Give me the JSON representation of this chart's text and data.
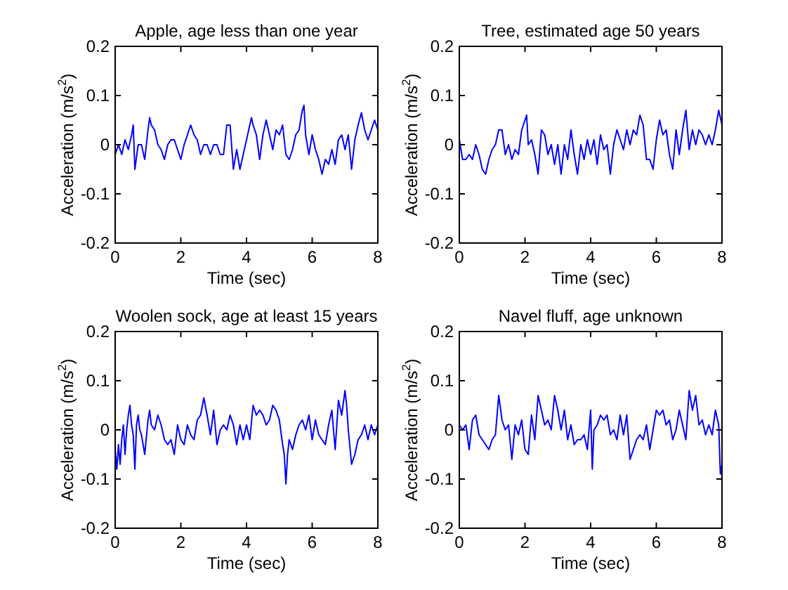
{
  "chart_data": [
    {
      "type": "line",
      "title": "Apple, age less than one year",
      "xlabel": "Time (sec)",
      "ylabel": "Acceleration (m/s$^{2}$)",
      "xlim": [
        0,
        8
      ],
      "ylim": [
        -0.2,
        0.2
      ],
      "xticks": [
        0,
        2,
        4,
        6,
        8
      ],
      "yticks": [
        -0.2,
        -0.1,
        0,
        0.1,
        0.2
      ],
      "x": [
        0,
        0.1,
        0.2,
        0.3,
        0.4,
        0.5,
        0.55,
        0.6,
        0.7,
        0.8,
        0.9,
        1,
        1.05,
        1.1,
        1.2,
        1.3,
        1.4,
        1.5,
        1.6,
        1.7,
        1.8,
        1.9,
        2,
        2.1,
        2.2,
        2.3,
        2.4,
        2.5,
        2.6,
        2.7,
        2.8,
        2.9,
        3,
        3.1,
        3.2,
        3.3,
        3.4,
        3.5,
        3.6,
        3.7,
        3.8,
        3.9,
        4,
        4.1,
        4.15,
        4.2,
        4.3,
        4.4,
        4.5,
        4.6,
        4.7,
        4.8,
        4.9,
        5,
        5.1,
        5.2,
        5.3,
        5.4,
        5.5,
        5.6,
        5.7,
        5.75,
        5.8,
        5.9,
        6,
        6.1,
        6.2,
        6.3,
        6.4,
        6.5,
        6.6,
        6.7,
        6.8,
        6.9,
        7,
        7.1,
        7.2,
        7.3,
        7.4,
        7.5,
        7.6,
        7.7,
        7.8,
        7.9,
        8
      ],
      "series": [
        {
          "color": "#0000ff",
          "values": [
            -0.02,
            0,
            -0.02,
            0.01,
            -0.01,
            0.02,
            0.04,
            -0.05,
            0,
            0,
            -0.03,
            0.03,
            0.055,
            0.04,
            0.03,
            0,
            -0.01,
            -0.03,
            0,
            0.01,
            0.01,
            -0.01,
            -0.03,
            0,
            0.02,
            0.04,
            0.02,
            0.01,
            -0.02,
            0,
            0,
            -0.02,
            0,
            0,
            -0.02,
            -0.02,
            0.04,
            0.04,
            -0.05,
            -0.01,
            -0.05,
            -0.02,
            0.01,
            0.04,
            0.055,
            0.04,
            0.02,
            -0.03,
            0.02,
            0.05,
            0.02,
            -0.01,
            0.03,
            0.02,
            0.04,
            -0.02,
            -0.03,
            -0.01,
            0.02,
            0.03,
            0.07,
            0.08,
            0.02,
            -0.02,
            0.02,
            -0.01,
            -0.03,
            -0.06,
            -0.03,
            -0.04,
            -0.01,
            -0.04,
            0.01,
            0.02,
            -0.01,
            0.02,
            -0.05,
            0.01,
            0.04,
            0.065,
            0.03,
            0.01,
            0.03,
            0.05,
            0.03
          ]
        }
      ]
    },
    {
      "type": "line",
      "title": "Tree, estimated age 50 years",
      "xlabel": "Time (sec)",
      "ylabel": "Acceleration (m/s$^{2}$)",
      "xlim": [
        0,
        8
      ],
      "ylim": [
        -0.2,
        0.2
      ],
      "xticks": [
        0,
        2,
        4,
        6,
        8
      ],
      "yticks": [
        -0.2,
        -0.1,
        0,
        0.1,
        0.2
      ],
      "x": [
        0,
        0.1,
        0.2,
        0.3,
        0.4,
        0.5,
        0.6,
        0.7,
        0.8,
        0.9,
        1,
        1.1,
        1.2,
        1.3,
        1.4,
        1.5,
        1.6,
        1.7,
        1.8,
        1.9,
        2,
        2.05,
        2.1,
        2.2,
        2.3,
        2.4,
        2.5,
        2.6,
        2.7,
        2.8,
        2.9,
        3,
        3.1,
        3.2,
        3.3,
        3.4,
        3.5,
        3.6,
        3.7,
        3.8,
        3.9,
        4,
        4.1,
        4.2,
        4.3,
        4.4,
        4.5,
        4.6,
        4.7,
        4.8,
        4.9,
        5,
        5.1,
        5.2,
        5.3,
        5.4,
        5.5,
        5.6,
        5.7,
        5.8,
        5.9,
        6,
        6.1,
        6.2,
        6.3,
        6.4,
        6.5,
        6.6,
        6.7,
        6.8,
        6.9,
        7,
        7.1,
        7.2,
        7.3,
        7.4,
        7.5,
        7.6,
        7.7,
        7.8,
        7.9,
        8
      ],
      "series": [
        {
          "color": "#0000ff",
          "values": [
            0.01,
            -0.03,
            -0.03,
            -0.02,
            -0.03,
            0,
            -0.02,
            -0.05,
            -0.06,
            -0.03,
            -0.01,
            0,
            0.03,
            0.03,
            -0.02,
            0,
            -0.03,
            -0.01,
            -0.02,
            0.03,
            0.05,
            0.06,
            0,
            0.01,
            -0.02,
            -0.06,
            0.03,
            0.02,
            -0.02,
            0,
            -0.04,
            0,
            -0.06,
            0,
            -0.03,
            0.03,
            -0.02,
            -0.06,
            0,
            -0.03,
            0.01,
            -0.02,
            0.01,
            -0.04,
            0.02,
            -0.01,
            0,
            -0.06,
            0,
            0.03,
            0.01,
            -0.01,
            0.03,
            0,
            0.03,
            0.02,
            0.06,
            0.04,
            -0.03,
            -0.03,
            -0.05,
            0.01,
            0.05,
            0.02,
            0.03,
            -0.02,
            -0.05,
            0.03,
            -0.02,
            0.03,
            0.07,
            -0.01,
            0.03,
            0,
            0.03,
            0.02,
            0,
            0.02,
            0,
            0.03,
            0.07,
            0.04
          ]
        }
      ]
    },
    {
      "type": "line",
      "title": "Woolen sock, age at least 15 years",
      "xlabel": "Time (sec)",
      "ylabel": "Acceleration (m/s$^{2}$)",
      "xlim": [
        0,
        8
      ],
      "ylim": [
        -0.2,
        0.2
      ],
      "xticks": [
        0,
        2,
        4,
        6,
        8
      ],
      "yticks": [
        -0.2,
        -0.1,
        0,
        0.1,
        0.2
      ],
      "x": [
        0,
        0.05,
        0.1,
        0.15,
        0.2,
        0.25,
        0.3,
        0.35,
        0.4,
        0.45,
        0.5,
        0.55,
        0.6,
        0.65,
        0.7,
        0.75,
        0.8,
        0.85,
        0.9,
        1,
        1.05,
        1.1,
        1.2,
        1.3,
        1.4,
        1.5,
        1.6,
        1.7,
        1.8,
        1.9,
        2,
        2.1,
        2.2,
        2.3,
        2.4,
        2.5,
        2.6,
        2.7,
        2.8,
        2.9,
        3,
        3.1,
        3.2,
        3.3,
        3.4,
        3.5,
        3.6,
        3.7,
        3.8,
        3.9,
        4,
        4.1,
        4.2,
        4.3,
        4.4,
        4.5,
        4.6,
        4.7,
        4.8,
        4.9,
        5,
        5.1,
        5.15,
        5.2,
        5.25,
        5.3,
        5.4,
        5.5,
        5.6,
        5.7,
        5.8,
        5.9,
        6,
        6.1,
        6.2,
        6.3,
        6.4,
        6.5,
        6.6,
        6.7,
        6.8,
        6.9,
        7,
        7.05,
        7.1,
        7.2,
        7.3,
        7.4,
        7.5,
        7.6,
        7.7,
        7.8,
        7.9,
        8
      ],
      "series": [
        {
          "color": "#0000ff",
          "values": [
            -0.04,
            -0.08,
            -0.03,
            -0.07,
            -0.02,
            0.01,
            -0.05,
            0,
            0.03,
            0.05,
            0.01,
            -0.01,
            -0.08,
            0.01,
            0.03,
            0,
            -0.01,
            -0.03,
            -0.05,
            0.02,
            0.04,
            0.01,
            0,
            0.03,
            0.01,
            -0.02,
            -0.03,
            -0.02,
            -0.05,
            0.01,
            -0.02,
            -0.03,
            0.01,
            -0.01,
            -0.02,
            0.02,
            0.03,
            0.065,
            0.03,
            -0.01,
            0.04,
            -0.03,
            0,
            0.01,
            0,
            0.03,
            0.01,
            -0.03,
            0.01,
            -0.02,
            0.01,
            -0.02,
            0.05,
            0.03,
            0.04,
            0.03,
            0.01,
            0.02,
            0.05,
            0.04,
            0.02,
            -0.03,
            -0.05,
            -0.11,
            -0.05,
            -0.02,
            -0.04,
            -0.01,
            0.01,
            0.02,
            0,
            0.03,
            -0.02,
            0.02,
            -0.01,
            -0.02,
            -0.03,
            0.01,
            0.04,
            -0.04,
            0.06,
            0.03,
            0.08,
            0.05,
            0,
            -0.07,
            -0.05,
            -0.02,
            -0.01,
            0.01,
            -0.02,
            0.01,
            -0.01,
            0.01
          ]
        }
      ]
    },
    {
      "type": "line",
      "title": "Navel fluff, age unknown",
      "xlabel": "Time (sec)",
      "ylabel": "Acceleration (m/s$^{2}$)",
      "xlim": [
        0,
        8
      ],
      "ylim": [
        -0.2,
        0.2
      ],
      "xticks": [
        0,
        2,
        4,
        6,
        8
      ],
      "yticks": [
        -0.2,
        -0.1,
        0,
        0.1,
        0.2
      ],
      "x": [
        0,
        0.1,
        0.2,
        0.3,
        0.4,
        0.5,
        0.6,
        0.7,
        0.8,
        0.9,
        1,
        1.1,
        1.2,
        1.3,
        1.4,
        1.5,
        1.6,
        1.7,
        1.8,
        1.9,
        2,
        2.1,
        2.2,
        2.3,
        2.4,
        2.5,
        2.6,
        2.7,
        2.8,
        2.9,
        3,
        3.1,
        3.2,
        3.3,
        3.4,
        3.5,
        3.6,
        3.7,
        3.8,
        3.9,
        4,
        4.05,
        4.1,
        4.2,
        4.3,
        4.4,
        4.5,
        4.6,
        4.7,
        4.8,
        4.9,
        5,
        5.1,
        5.2,
        5.3,
        5.4,
        5.5,
        5.6,
        5.7,
        5.8,
        5.9,
        6,
        6.1,
        6.2,
        6.3,
        6.4,
        6.5,
        6.6,
        6.7,
        6.8,
        6.9,
        7,
        7.1,
        7.2,
        7.3,
        7.4,
        7.5,
        7.6,
        7.7,
        7.8,
        7.9,
        7.95,
        8
      ],
      "series": [
        {
          "color": "#0000ff",
          "values": [
            0.01,
            0,
            0.01,
            -0.04,
            0.02,
            0.03,
            -0.01,
            -0.02,
            -0.03,
            -0.04,
            -0.02,
            -0.01,
            0.07,
            0.02,
            0,
            0.01,
            -0.06,
            0.01,
            -0.01,
            0.02,
            -0.04,
            -0.05,
            0.03,
            -0.02,
            0.07,
            0.04,
            0.01,
            0.02,
            0,
            0.07,
            0.04,
            0,
            0.04,
            -0.02,
            0.01,
            -0.03,
            -0.02,
            -0.02,
            -0.01,
            -0.04,
            0.04,
            -0.08,
            0,
            0.01,
            0.03,
            0.02,
            0.03,
            -0.01,
            0,
            -0.02,
            0.03,
            -0.01,
            0.03,
            -0.06,
            -0.04,
            -0.02,
            -0.01,
            -0.02,
            0.01,
            -0.04,
            0,
            0.04,
            0.03,
            0.04,
            0.01,
            0.02,
            -0.02,
            0,
            0.04,
            0.01,
            -0.02,
            0.08,
            0.04,
            0.07,
            0.01,
            0.02,
            -0.01,
            0.01,
            -0.01,
            0.04,
            0.01,
            -0.09,
            -0.07
          ]
        }
      ]
    }
  ]
}
